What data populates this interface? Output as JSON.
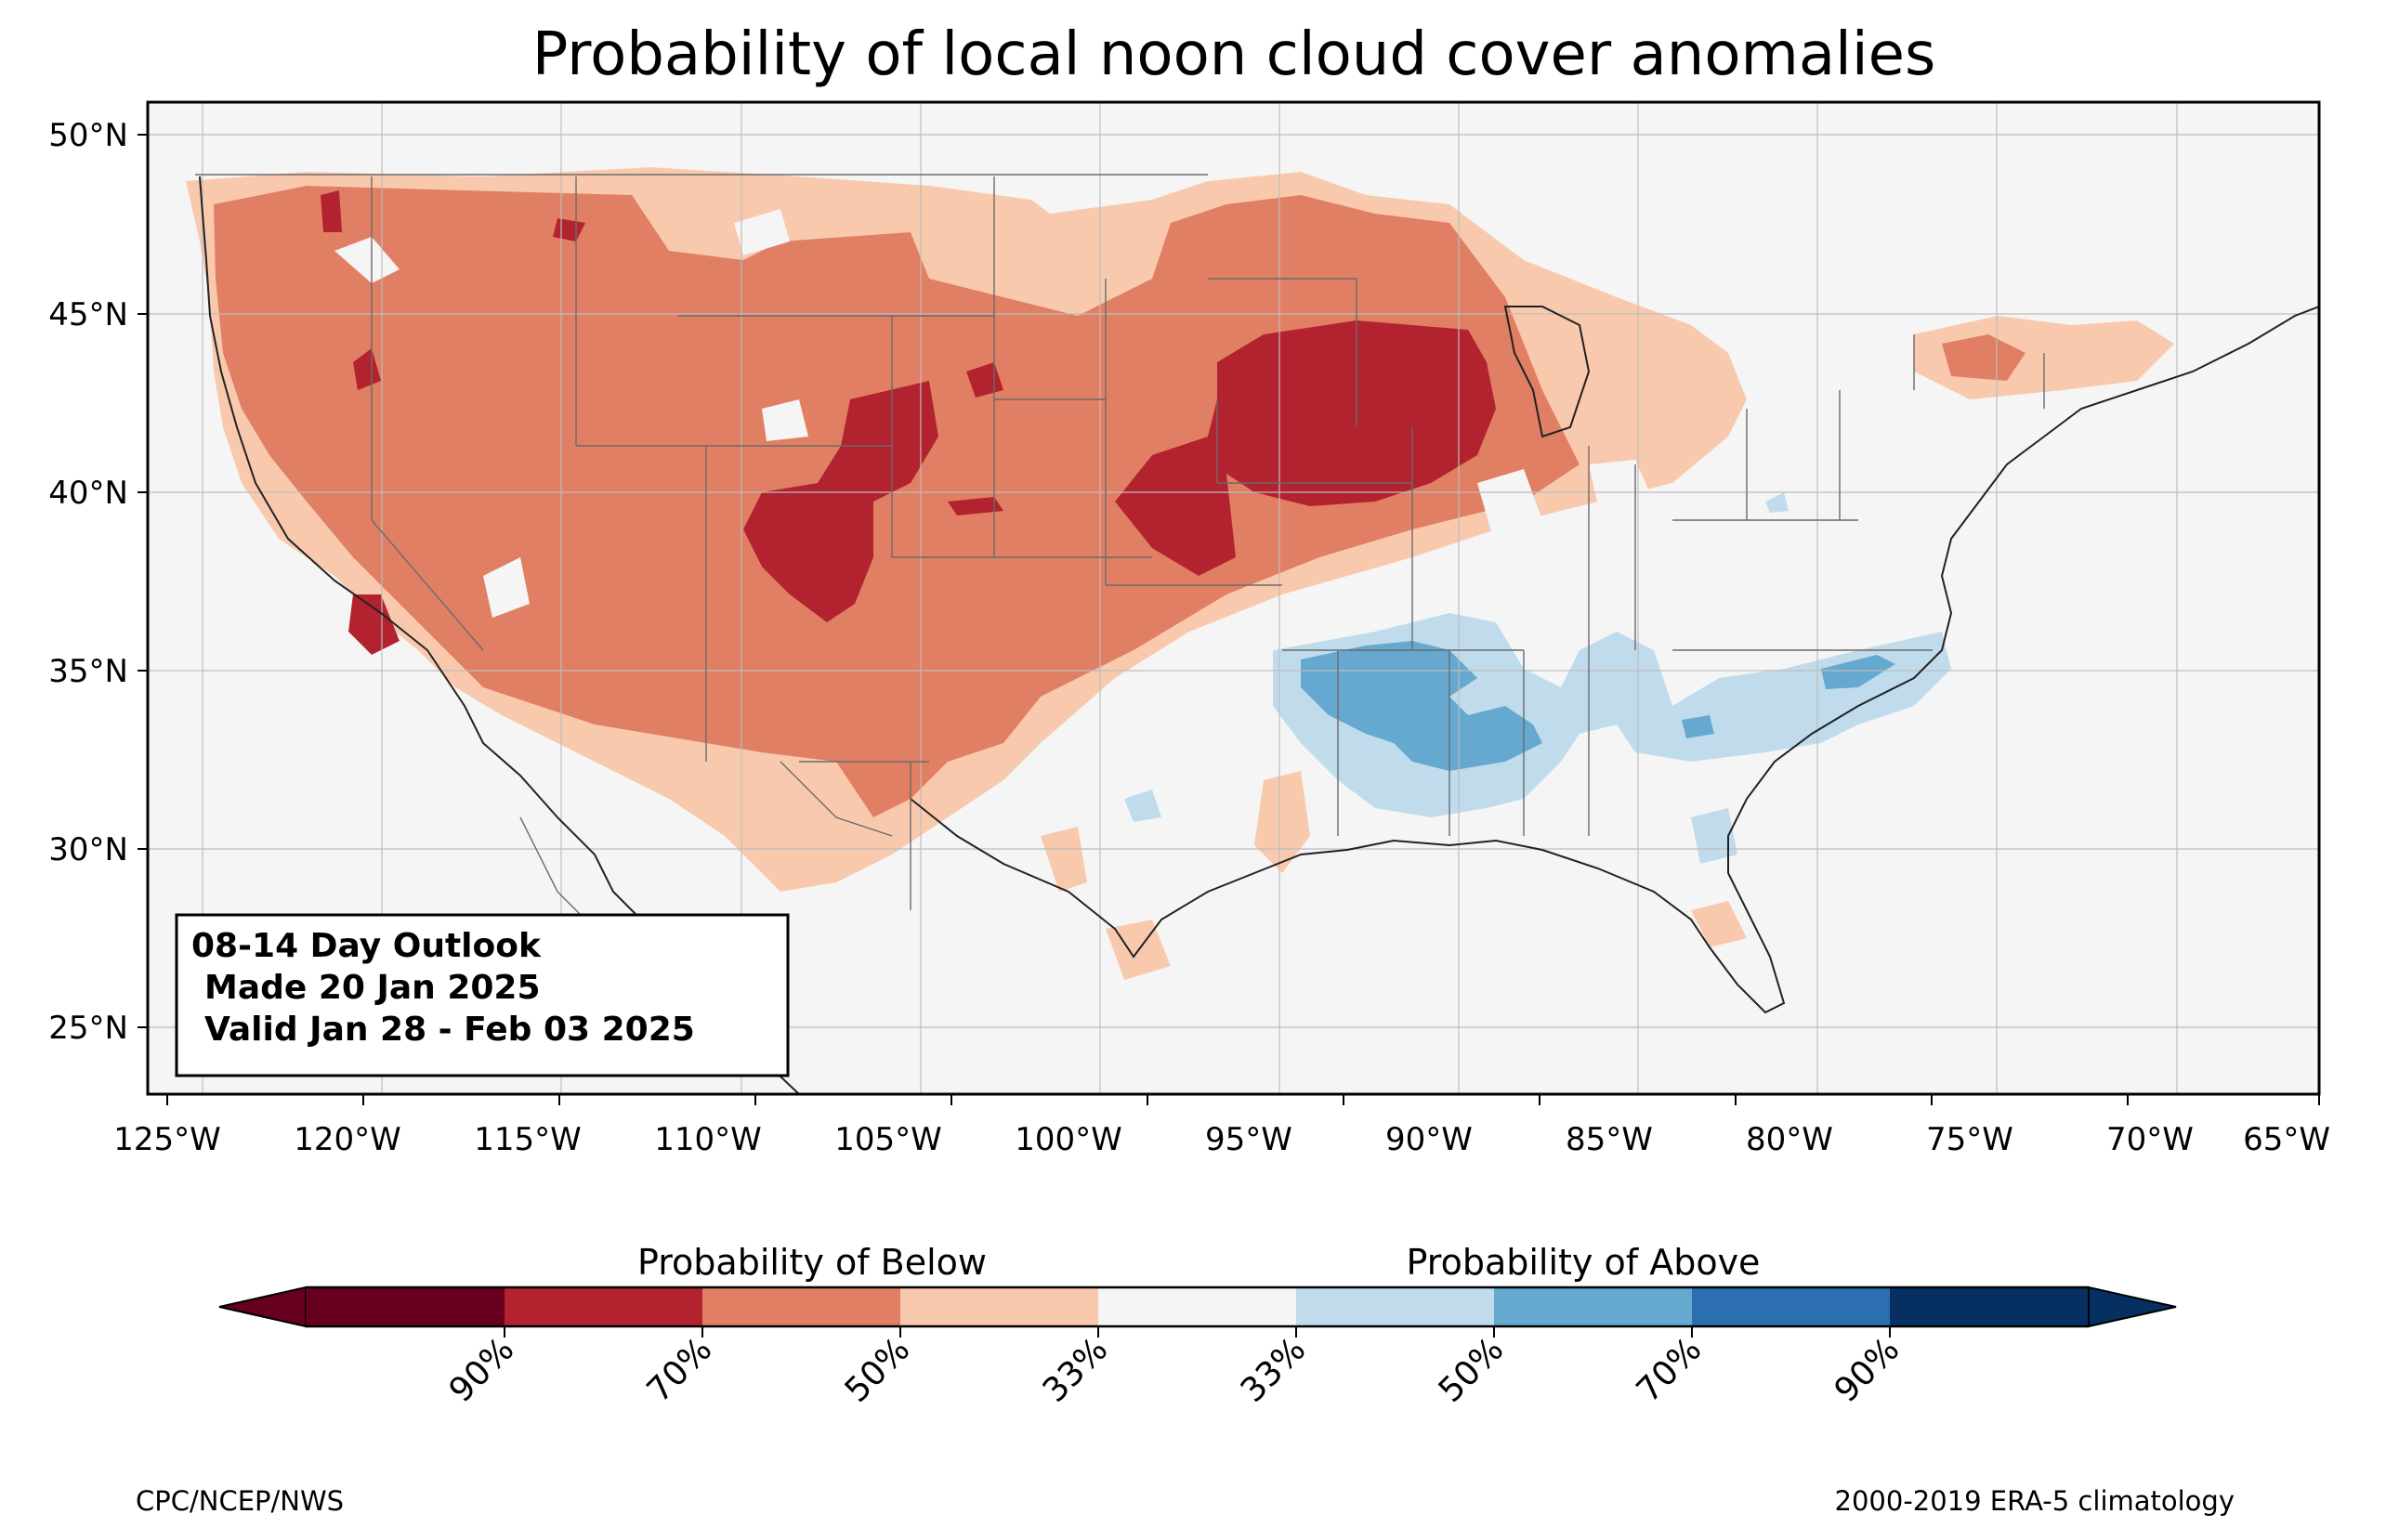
{
  "title": "Probability of local noon cloud cover anomalies",
  "map": {
    "lat_ticks": [
      "50°N",
      "45°N",
      "40°N",
      "35°N",
      "30°N",
      "25°N"
    ],
    "lon_ticks": [
      "125°W",
      "120°W",
      "115°W",
      "110°W",
      "105°W",
      "100°W",
      "95°W",
      "90°W",
      "85°W",
      "80°W",
      "75°W",
      "70°W",
      "65°W"
    ],
    "lat_range": [
      23,
      51
    ],
    "lon_range": [
      -125.5,
      -65
    ],
    "background": "#f5f5f5",
    "grid": true
  },
  "info_box": {
    "line1": "08-14 Day Outlook",
    "line2": "Made 20 Jan 2025",
    "line3": "Valid Jan 28 - Feb 03 2025"
  },
  "colorbar": {
    "below_label": "Probability of Below",
    "above_label": "Probability of Above",
    "tick_labels": [
      "90%",
      "70%",
      "50%",
      "33%",
      "33%",
      "50%",
      "70%",
      "90%"
    ],
    "colors": [
      "#67001f",
      "#b2232f",
      "#e07f64",
      "#f9c9ae",
      "#f5f5f5",
      "#c0dcec",
      "#65a8d0",
      "#2b6fb0",
      "#053061"
    ]
  },
  "footer": {
    "left": "CPC/NCEP/NWS",
    "right": "2000-2019 ERA-5 climatology"
  }
}
